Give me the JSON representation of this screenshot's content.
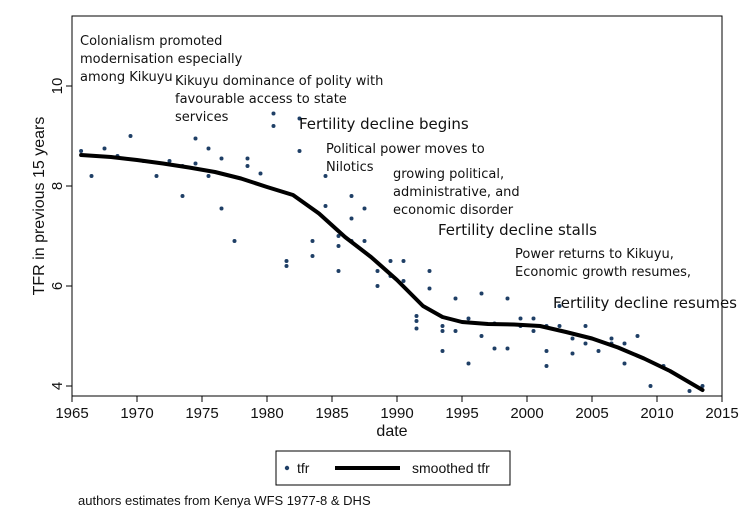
{
  "chart_data": {
    "type": "scatter",
    "xlabel": "date",
    "ylabel": "TFR in previous 15 years",
    "xlim": [
      1965,
      2015
    ],
    "ylim": [
      3.8,
      11.4
    ],
    "x_ticks": [
      1965,
      1970,
      1975,
      1980,
      1985,
      1990,
      1995,
      2000,
      2005,
      2010,
      2015
    ],
    "y_ticks": [
      4,
      6,
      8,
      10
    ],
    "grid": false,
    "legend_position": "bottom",
    "series": [
      {
        "name": "tfr",
        "kind": "scatter",
        "color": "#1f3f66",
        "x": [
          1965.7,
          1966.5,
          1967.5,
          1968.5,
          1969.5,
          1970.5,
          1971.5,
          1972.5,
          1973.5,
          1973.5,
          1974.5,
          1974.5,
          1975.5,
          1975.5,
          1976.5,
          1976.5,
          1977.5,
          1978.5,
          1978.5,
          1979.5,
          1980.5,
          1980.5,
          1981.5,
          1981.5,
          1982.5,
          1982.5,
          1983.5,
          1983.5,
          1984.5,
          1984.5,
          1985.5,
          1985.5,
          1985.5,
          1986.5,
          1986.5,
          1986.5,
          1987.5,
          1987.5,
          1988.5,
          1988.5,
          1989.5,
          1989.5,
          1990.5,
          1990.5,
          1991.5,
          1991.5,
          1991.5,
          1992.5,
          1992.5,
          1993.5,
          1993.5,
          1993.5,
          1994.5,
          1994.5,
          1995.5,
          1995.5,
          1996.5,
          1996.5,
          1997.5,
          1997.5,
          1998.5,
          1998.5,
          1999.5,
          1999.5,
          2000.5,
          2000.5,
          2001.5,
          2001.5,
          2001.5,
          2002.5,
          2002.5,
          2003.5,
          2003.5,
          2004.5,
          2004.5,
          2005.5,
          2006.5,
          2006.5,
          2007.5,
          2007.5,
          2008.5,
          2009.5,
          2010.5,
          2012.5,
          2013.5
        ],
        "y": [
          8.7,
          8.2,
          8.75,
          8.6,
          9.0,
          8.5,
          8.2,
          8.5,
          8.4,
          7.8,
          8.95,
          8.45,
          8.75,
          8.2,
          8.55,
          7.55,
          6.9,
          8.4,
          8.55,
          8.25,
          9.45,
          9.2,
          6.5,
          6.4,
          9.35,
          8.7,
          6.9,
          6.6,
          8.2,
          7.6,
          7.0,
          6.8,
          6.3,
          7.8,
          7.35,
          6.9,
          7.55,
          6.9,
          6.3,
          6.0,
          6.5,
          6.2,
          6.5,
          6.1,
          5.4,
          5.3,
          5.15,
          6.3,
          5.95,
          5.2,
          5.1,
          4.7,
          5.75,
          5.1,
          5.35,
          4.45,
          5.85,
          5.0,
          5.25,
          4.75,
          5.75,
          4.75,
          5.35,
          5.2,
          5.35,
          5.1,
          4.7,
          4.4,
          5.2,
          5.6,
          5.2,
          4.65,
          4.95,
          5.2,
          4.85,
          4.7,
          4.95,
          4.85,
          4.45,
          4.85,
          5.0,
          4.0,
          4.4,
          3.9,
          4.0
        ]
      },
      {
        "name": "smoothed tfr",
        "kind": "line",
        "color": "#000000",
        "x": [
          1965.7,
          1968,
          1970,
          1972,
          1974,
          1976,
          1978,
          1980,
          1982,
          1984,
          1986,
          1988,
          1990,
          1992,
          1993.5,
          1995,
          1997,
          1999,
          2001,
          2003,
          2005,
          2007,
          2009,
          2011,
          2013.5
        ],
        "y": [
          8.62,
          8.58,
          8.52,
          8.45,
          8.37,
          8.28,
          8.15,
          7.98,
          7.82,
          7.45,
          6.98,
          6.58,
          6.12,
          5.6,
          5.38,
          5.28,
          5.24,
          5.23,
          5.2,
          5.08,
          4.95,
          4.77,
          4.55,
          4.3,
          3.92
        ]
      }
    ],
    "annotations": [
      {
        "lines": [
          "Colonialism promoted",
          "modernisation especially",
          "among Kikuyu"
        ]
      },
      {
        "lines": [
          "Kikuyu dominance of polity with",
          "favourable access to state",
          "services"
        ]
      },
      {
        "lines": [
          "Fertility decline begins"
        ]
      },
      {
        "lines": [
          "Political power moves to",
          "Nilotics"
        ]
      },
      {
        "lines": [
          "growing political,",
          "administrative, and",
          "economic disorder"
        ]
      },
      {
        "lines": [
          "Fertility decline stalls"
        ]
      },
      {
        "lines": [
          "Power returns to Kikuyu,",
          "Economic growth resumes,"
        ]
      },
      {
        "lines": [
          "Fertility decline resumes"
        ]
      }
    ],
    "note": "authors estimates from Kenya WFS 1977-8 & DHS"
  }
}
